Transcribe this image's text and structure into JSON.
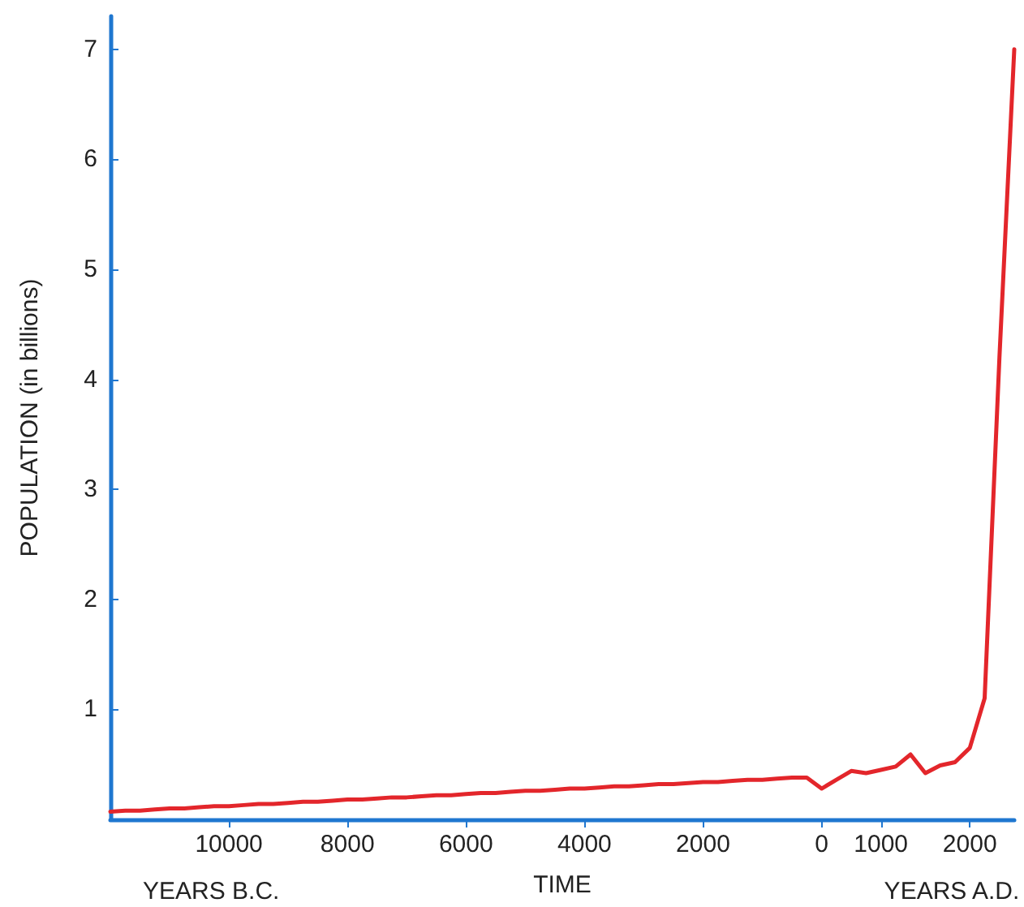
{
  "chart_data": {
    "type": "line",
    "xlabel": "TIME",
    "ylabel": "POPULATION (in billions)",
    "annotations": [
      "YEARS B.C.",
      "YEARS A.D."
    ],
    "categories": [
      null,
      null,
      null,
      null,
      null,
      null,
      null,
      null,
      "10000",
      null,
      null,
      null,
      null,
      null,
      null,
      null,
      "8000",
      null,
      null,
      null,
      null,
      null,
      null,
      null,
      "6000",
      null,
      null,
      null,
      null,
      null,
      null,
      null,
      "4000",
      null,
      null,
      null,
      null,
      null,
      null,
      null,
      "2000",
      null,
      null,
      null,
      null,
      null,
      null,
      null,
      "0",
      null,
      null,
      null,
      "1000",
      null,
      null,
      null,
      null,
      null,
      "2000",
      null,
      null,
      null
    ],
    "series": [
      {
        "color": "#e3262b",
        "values": [
          0.07,
          0.08,
          0.08,
          0.09,
          0.1,
          0.1,
          0.11,
          0.12,
          0.12,
          0.13,
          0.14,
          0.14,
          0.15,
          0.16,
          0.16,
          0.17,
          0.18,
          0.18,
          0.19,
          0.2,
          0.2,
          0.21,
          0.22,
          0.22,
          0.23,
          0.24,
          0.24,
          0.25,
          0.26,
          0.26,
          0.27,
          0.28,
          0.28,
          0.29,
          0.3,
          0.3,
          0.31,
          0.32,
          0.32,
          0.33,
          0.34,
          0.34,
          0.35,
          0.36,
          0.36,
          0.37,
          0.38,
          0.38,
          0.28,
          0.36,
          0.44,
          0.42,
          0.45,
          0.48,
          0.59,
          0.42,
          0.49,
          0.52,
          0.65,
          1.1,
          4.2,
          7.0
        ]
      }
    ],
    "ylim": [
      0,
      7.3
    ],
    "yticks": [
      1,
      2,
      3,
      4,
      5,
      6,
      7
    ],
    "grid": false,
    "marker": "none",
    "line_style": "solid"
  }
}
